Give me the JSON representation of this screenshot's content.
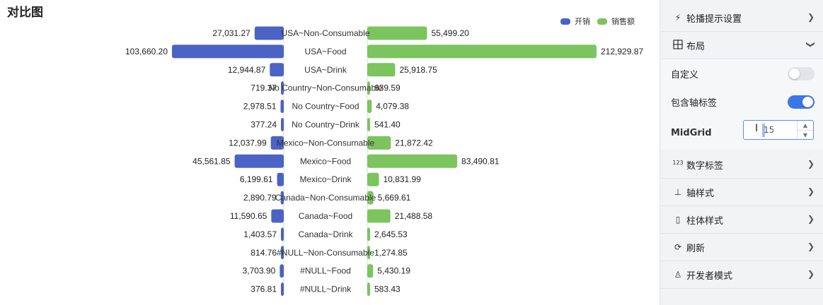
{
  "chart": {
    "title": "对比图",
    "legend": [
      {
        "label": "开销",
        "color": "#4b63c4"
      },
      {
        "label": "销售额",
        "color": "#7cc45e"
      }
    ]
  },
  "chart_data": {
    "type": "bar",
    "orientation": "horizontal-mirrored",
    "title": "对比图",
    "legend_position": "top-right",
    "categories": [
      "USA~Non-Consumable",
      "USA~Food",
      "USA~Drink",
      "No Country~Non-Consumable",
      "No Country~Food",
      "No Country~Drink",
      "Mexico~Non-Consumable",
      "Mexico~Food",
      "Mexico~Drink",
      "Canada~Non-Consumable",
      "Canada~Food",
      "Canada~Drink",
      "#NULL~Non-Consumable",
      "#NULL~Food",
      "#NULL~Drink"
    ],
    "series": [
      {
        "name": "开销",
        "side": "left",
        "color": "#4b63c4",
        "values": [
          27031.27,
          103660.2,
          12944.87,
          719.37,
          2978.51,
          377.24,
          12037.99,
          45561.85,
          6199.61,
          2890.79,
          11590.65,
          1403.57,
          814.76,
          3703.9,
          376.81
        ],
        "labels": [
          "27,031.27",
          "103,660.20",
          "12,944.87",
          "719.37",
          "2,978.51",
          "377.24",
          "12,037.99",
          "45,561.85",
          "6,199.61",
          "2,890.79",
          "11,590.65",
          "1,403.57",
          "814.76",
          "3,703.90",
          "376.81"
        ]
      },
      {
        "name": "销售额",
        "side": "right",
        "color": "#7cc45e",
        "values": [
          55499.2,
          212929.87,
          25918.75,
          839.59,
          4079.38,
          541.4,
          21872.42,
          83490.81,
          10831.99,
          5669.61,
          21488.58,
          2645.53,
          1274.85,
          5430.19,
          583.43
        ],
        "labels": [
          "55,499.20",
          "212,929.87",
          "25,918.75",
          "839.59",
          "4,079.38",
          "541.40",
          "21,872.42",
          "83,490.81",
          "10,831.99",
          "5,669.61",
          "21,488.58",
          "2,645.53",
          "1,274.85",
          "5,430.19",
          "583.43"
        ]
      }
    ]
  },
  "panel": {
    "carousel": {
      "label": "轮播提示设置",
      "icon": "lightning-icon"
    },
    "layout": {
      "label": "布局",
      "icon": "layout-grid-icon"
    },
    "custom": {
      "label": "自定义",
      "on": false
    },
    "include_axis_labels": {
      "label": "包含轴标签",
      "on": true
    },
    "midgrid": {
      "label": "MidGrid",
      "value": "15"
    },
    "number_labels": {
      "label": "数字标签",
      "icon_text": "123"
    },
    "axis_style": {
      "label": "轴样式",
      "icon": "axis-icon"
    },
    "bar_style": {
      "label": "柱体样式",
      "icon": "bar-style-icon"
    },
    "refresh": {
      "label": "刷新",
      "icon": "refresh-icon"
    },
    "dev_mode": {
      "label": "开发者模式",
      "icon": "developer-icon"
    }
  }
}
